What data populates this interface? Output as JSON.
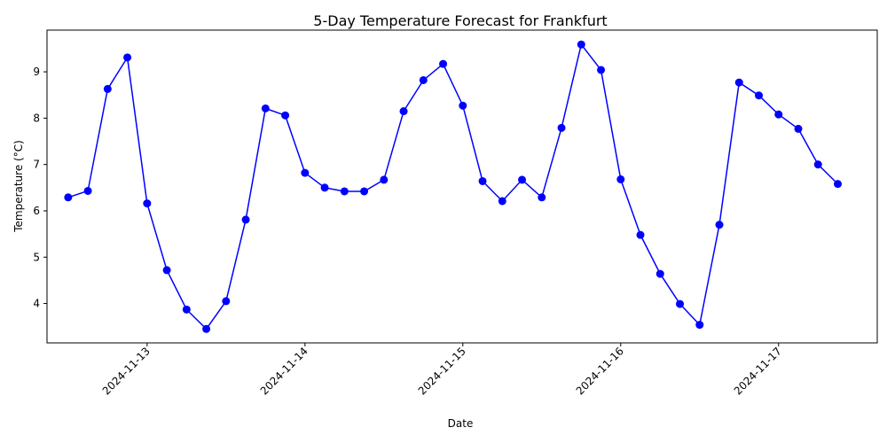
{
  "chart_data": {
    "type": "line",
    "title": "5-Day Temperature Forecast for Frankfurt",
    "xlabel": "Date",
    "ylabel": "Temperature (°C)",
    "x_tick_labels": [
      "2024-11-13",
      "2024-11-14",
      "2024-11-15",
      "2024-11-16",
      "2024-11-17"
    ],
    "y_ticks": [
      4,
      5,
      6,
      7,
      8,
      9
    ],
    "ylim": [
      3.15,
      9.9
    ],
    "xlim": [
      "2024-11-12 08:47",
      "2024-11-17 15:00"
    ],
    "grid": false,
    "marker": "circle",
    "color": "#0000ff",
    "series": [
      {
        "x": [
          "2024-11-12 12:00",
          "2024-11-12 15:00",
          "2024-11-12 18:00",
          "2024-11-12 21:00",
          "2024-11-13 00:00",
          "2024-11-13 03:00",
          "2024-11-13 06:00",
          "2024-11-13 09:00",
          "2024-11-13 12:00",
          "2024-11-13 15:00",
          "2024-11-13 18:00",
          "2024-11-13 21:00",
          "2024-11-14 00:00",
          "2024-11-14 03:00",
          "2024-11-14 06:00",
          "2024-11-14 09:00",
          "2024-11-14 12:00",
          "2024-11-14 15:00",
          "2024-11-14 18:00",
          "2024-11-14 21:00",
          "2024-11-15 00:00",
          "2024-11-15 03:00",
          "2024-11-15 06:00",
          "2024-11-15 09:00",
          "2024-11-15 12:00",
          "2024-11-15 15:00",
          "2024-11-15 18:00",
          "2024-11-15 21:00",
          "2024-11-16 00:00",
          "2024-11-16 03:00",
          "2024-11-16 06:00",
          "2024-11-16 09:00",
          "2024-11-16 12:00",
          "2024-11-16 15:00",
          "2024-11-16 18:00",
          "2024-11-16 21:00",
          "2024-11-17 00:00",
          "2024-11-17 03:00",
          "2024-11-17 06:00",
          "2024-11-17 09:00"
        ],
        "values": [
          6.29,
          6.43,
          8.63,
          9.31,
          6.16,
          4.72,
          3.87,
          3.45,
          4.05,
          5.81,
          8.21,
          8.06,
          6.82,
          6.5,
          6.42,
          6.42,
          6.67,
          8.15,
          8.82,
          9.17,
          8.27,
          6.64,
          6.21,
          6.67,
          6.29,
          7.79,
          9.59,
          9.04,
          6.68,
          5.48,
          4.64,
          3.99,
          3.54,
          5.7,
          8.77,
          8.49,
          8.08,
          7.77,
          7.0,
          6.58
        ]
      }
    ]
  }
}
